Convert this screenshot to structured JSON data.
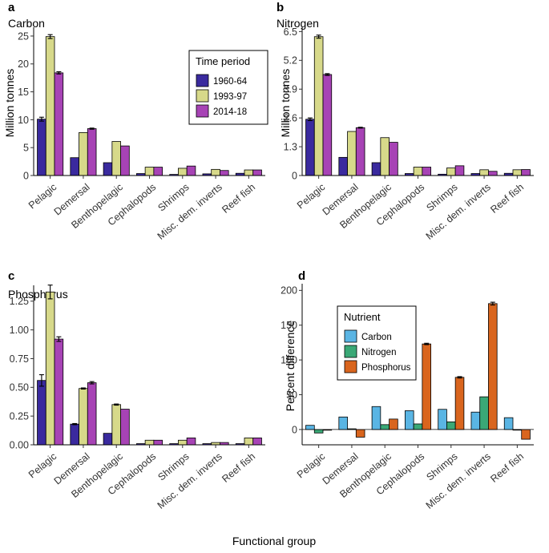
{
  "figure": {
    "xlabel": "Functional group"
  },
  "chart_data": [
    {
      "panel": "a",
      "title": "Carbon",
      "type": "bar",
      "ylabel": "Million tonnes",
      "ylim": [
        0,
        26
      ],
      "yticks": [
        0,
        5,
        10,
        15,
        20,
        25
      ],
      "ytick_labels": [
        "0",
        "5",
        "10",
        "15",
        "20",
        "25"
      ],
      "categories": [
        "Pelagic",
        "Demersal",
        "Benthopelagic",
        "Cephalopods",
        "Shrimps",
        "Misc. dem. inverts",
        "Reef fish"
      ],
      "legend": {
        "title": "Time period",
        "position": "top-right"
      },
      "series": [
        {
          "name": "1960-64",
          "color": "#3a2a9e",
          "values": [
            10.1,
            3.2,
            2.3,
            0.35,
            0.2,
            0.3,
            0.4
          ],
          "errors": [
            0.35,
            0,
            0,
            0,
            0,
            0,
            0
          ]
        },
        {
          "name": "1993-97",
          "color": "#d7d98a",
          "values": [
            24.9,
            7.7,
            6.1,
            1.5,
            1.3,
            1.1,
            1.0
          ],
          "errors": [
            0.35,
            0,
            0,
            0,
            0,
            0,
            0
          ]
        },
        {
          "name": "2014-18",
          "color": "#a743b5",
          "values": [
            18.4,
            8.4,
            5.3,
            1.5,
            1.7,
            0.9,
            1.0
          ],
          "errors": [
            0.2,
            0.1,
            0,
            0,
            0,
            0,
            0
          ]
        }
      ]
    },
    {
      "panel": "b",
      "title": "Nitrogen",
      "type": "bar",
      "ylabel": "Million tonnes",
      "ylim": [
        0,
        6.55
      ],
      "yticks": [
        0,
        1.3,
        2.6,
        3.9,
        5.2,
        6.5
      ],
      "ytick_labels": [
        "0",
        "1.3",
        "2.6",
        "3.9",
        "5.2",
        "6.5"
      ],
      "categories": [
        "Pelagic",
        "Demersal",
        "Benthopelagic",
        "Cephalopods",
        "Shrimps",
        "Misc. dem. inverts",
        "Reef fish"
      ],
      "series": [
        {
          "name": "1960-64",
          "color": "#3a2a9e",
          "values": [
            2.54,
            0.82,
            0.58,
            0.09,
            0.06,
            0.09,
            0.1
          ],
          "errors": [
            0.06,
            0,
            0,
            0,
            0,
            0,
            0
          ]
        },
        {
          "name": "1993-97",
          "color": "#d7d98a",
          "values": [
            6.27,
            1.99,
            1.71,
            0.38,
            0.34,
            0.26,
            0.26
          ],
          "errors": [
            0.07,
            0,
            0,
            0,
            0,
            0,
            0
          ]
        },
        {
          "name": "2014-18",
          "color": "#a743b5",
          "values": [
            4.56,
            2.16,
            1.5,
            0.38,
            0.44,
            0.19,
            0.27
          ],
          "errors": [
            0.04,
            0.02,
            0,
            0,
            0,
            0,
            0
          ]
        }
      ]
    },
    {
      "panel": "c",
      "title": "Phosphorus",
      "type": "bar",
      "ylabel": "",
      "ylim": [
        0,
        1.36
      ],
      "yticks": [
        0,
        0.25,
        0.5,
        0.75,
        1.0,
        1.25
      ],
      "ytick_labels": [
        "0.00",
        "0.25",
        "0.50",
        "0.75",
        "1.00",
        "1.25"
      ],
      "categories": [
        "Pelagic",
        "Demersal",
        "Benthopelagic",
        "Cephalopods",
        "Shrimps",
        "Misc. dem. inverts",
        "Reef fish"
      ],
      "series": [
        {
          "name": "1960-64",
          "color": "#3a2a9e",
          "values": [
            0.56,
            0.18,
            0.1,
            0.01,
            0.01,
            0.01,
            0.01
          ],
          "errors": [
            0.05,
            0.005,
            0,
            0,
            0,
            0,
            0
          ]
        },
        {
          "name": "1993-97",
          "color": "#d7d98a",
          "values": [
            1.33,
            0.49,
            0.35,
            0.04,
            0.04,
            0.02,
            0.06
          ],
          "errors": [
            0.06,
            0.005,
            0.005,
            0,
            0,
            0,
            0
          ]
        },
        {
          "name": "2014-18",
          "color": "#a743b5",
          "values": [
            0.92,
            0.54,
            0.31,
            0.04,
            0.06,
            0.02,
            0.06
          ],
          "errors": [
            0.02,
            0.01,
            0,
            0,
            0,
            0,
            0
          ]
        }
      ]
    },
    {
      "panel": "d",
      "title": "",
      "type": "bar",
      "ylabel": "Percent difference",
      "ylim": [
        -22,
        205
      ],
      "yticks": [
        0,
        50,
        100,
        150,
        200
      ],
      "ytick_labels": [
        "0",
        "50",
        "100",
        "150",
        "200"
      ],
      "categories": [
        "Pelagic",
        "Demersal",
        "Benthopelagic",
        "Cephalopods",
        "Shrimps",
        "Misc. dem. inverts",
        "Reef fish"
      ],
      "legend": {
        "title": "Nutrient",
        "position": "top-left"
      },
      "series": [
        {
          "name": "Carbon",
          "color": "#5ab5e4",
          "values": [
            6,
            18,
            33,
            27,
            29,
            25,
            17
          ],
          "errors": [
            0,
            0,
            0,
            0,
            0,
            0,
            0
          ]
        },
        {
          "name": "Nitrogen",
          "color": "#3aa876",
          "values": [
            -5,
            1,
            7,
            8,
            11,
            47,
            0
          ],
          "errors": [
            0,
            0,
            0,
            0,
            0,
            0,
            0
          ]
        },
        {
          "name": "Phosphorus",
          "color": "#d9651e",
          "values": [
            -1,
            -11,
            15,
            123,
            75,
            181,
            -14
          ],
          "errors": [
            0,
            0,
            0,
            1,
            1,
            2,
            0
          ]
        }
      ]
    }
  ]
}
